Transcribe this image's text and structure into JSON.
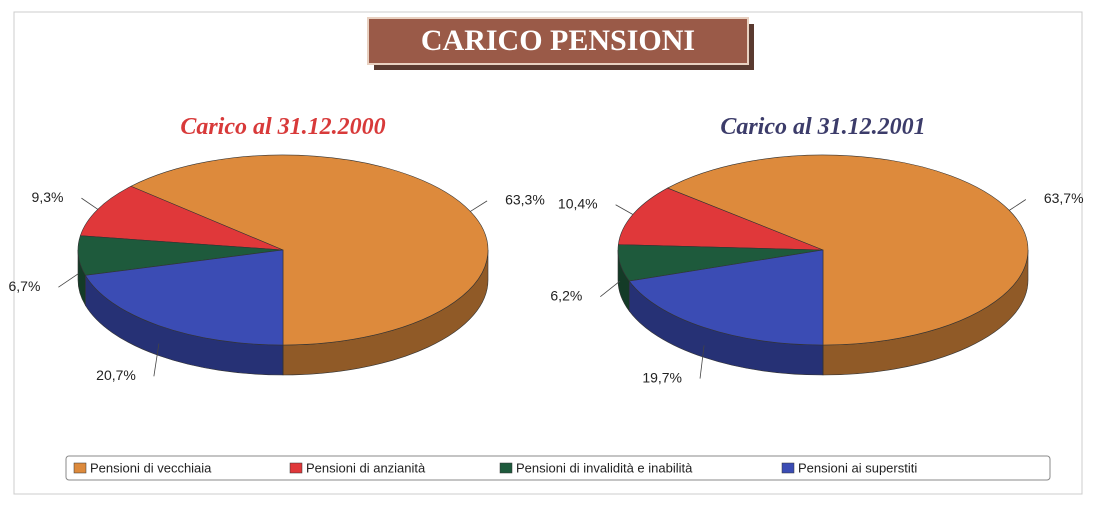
{
  "title": "CARICO PENSIONI",
  "chart_data": [
    {
      "type": "pie",
      "title": "Carico al 31.12.2000",
      "title_color": "#d83a3a",
      "categories": [
        "Pensioni di vecchiaia",
        "Pensioni di anzianità",
        "Pensioni di invalidità e inabilità",
        "Pensioni ai superstiti"
      ],
      "values": [
        63.3,
        9.3,
        6.7,
        20.7
      ],
      "value_labels": [
        "63,3%",
        "9,3%",
        "6,7%",
        "20,7%"
      ],
      "colors": [
        "#dd8a3c",
        "#e0383a",
        "#1e5a3c",
        "#3b4cb4"
      ]
    },
    {
      "type": "pie",
      "title": "Carico al 31.12.2001",
      "title_color": "#3c3c6a",
      "categories": [
        "Pensioni di vecchiaia",
        "Pensioni di anzianità",
        "Pensioni di invalidità e inabilità",
        "Pensioni ai superstiti"
      ],
      "values": [
        63.7,
        10.4,
        6.2,
        19.7
      ],
      "value_labels": [
        "63,7%",
        "10,4%",
        "6,2%",
        "19,7%"
      ],
      "colors": [
        "#dd8a3c",
        "#e0383a",
        "#1e5a3c",
        "#3b4cb4"
      ]
    }
  ]
}
